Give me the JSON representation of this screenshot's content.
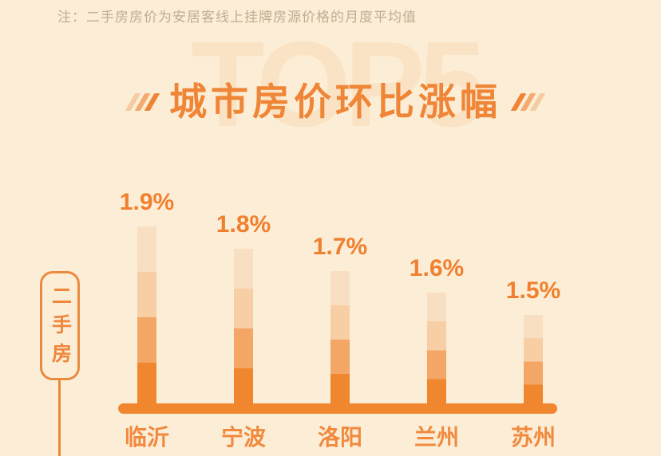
{
  "note": "注：二手房房价为安居客线上挂牌房源价格的月度平均值",
  "watermark": "TOP5",
  "title": "城市房价环比涨幅",
  "side_label": "二手房",
  "colors": {
    "background": "#FCEED6",
    "note_text": "#BCAE94",
    "watermark": "#FAE3C4",
    "title": "#EF8536",
    "percent_label": "#F0802F",
    "city_label": "#F1893E",
    "baseline": "#F0872E",
    "badge_border": "#EA8A3F",
    "badge_text": "#F0863C",
    "bar_segments_top_to_bottom": [
      "#F8DFC2",
      "#F8CEA4",
      "#F3A666",
      "#F0872E"
    ],
    "slash_shades_light_to_dark": [
      "#F5CBA2",
      "#F4A96E",
      "#F08435"
    ]
  },
  "chart_data": {
    "type": "bar",
    "title": "城市房价环比涨幅",
    "subtitle_watermark": "TOP5",
    "series_label": "二手房",
    "categories": [
      "临沂",
      "宁波",
      "洛阳",
      "兰州",
      "苏州"
    ],
    "values": [
      1.9,
      1.8,
      1.7,
      1.6,
      1.5
    ],
    "value_labels": [
      "1.9%",
      "1.8%",
      "1.7%",
      "1.6%",
      "1.5%"
    ],
    "unit": "%",
    "order": "descending",
    "legend_position": "left",
    "grid": false,
    "note": "二手房房价为安居客线上挂牌房源价格的月度平均值"
  }
}
